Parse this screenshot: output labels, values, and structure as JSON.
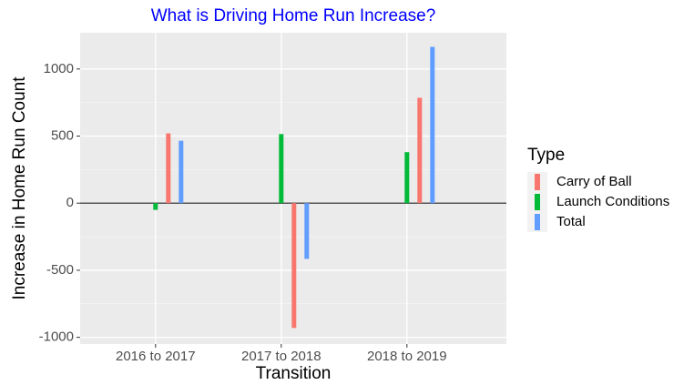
{
  "chart_data": {
    "type": "bar",
    "title": "What is Driving Home Run Increase?",
    "x_label": "Transition",
    "y_label": "Increase in Home Run Count",
    "categories": [
      "2016 to 2017",
      "2017 to 2018",
      "2018 to 2019"
    ],
    "series": [
      {
        "name": "Carry of Ball",
        "color": "#f8766d",
        "values": [
          520,
          -930,
          785
        ]
      },
      {
        "name": "Launch Conditions",
        "color": "#00ba38",
        "values": [
          -50,
          515,
          380
        ]
      },
      {
        "name": "Total",
        "color": "#619cff",
        "values": [
          465,
          -415,
          1165
        ]
      }
    ],
    "ylim": [
      -1050,
      1270
    ],
    "yticks": [
      -1000,
      -500,
      0,
      500,
      1000
    ],
    "hline": 0,
    "grid": true,
    "legend_title": "Type",
    "legend_position": "right"
  }
}
